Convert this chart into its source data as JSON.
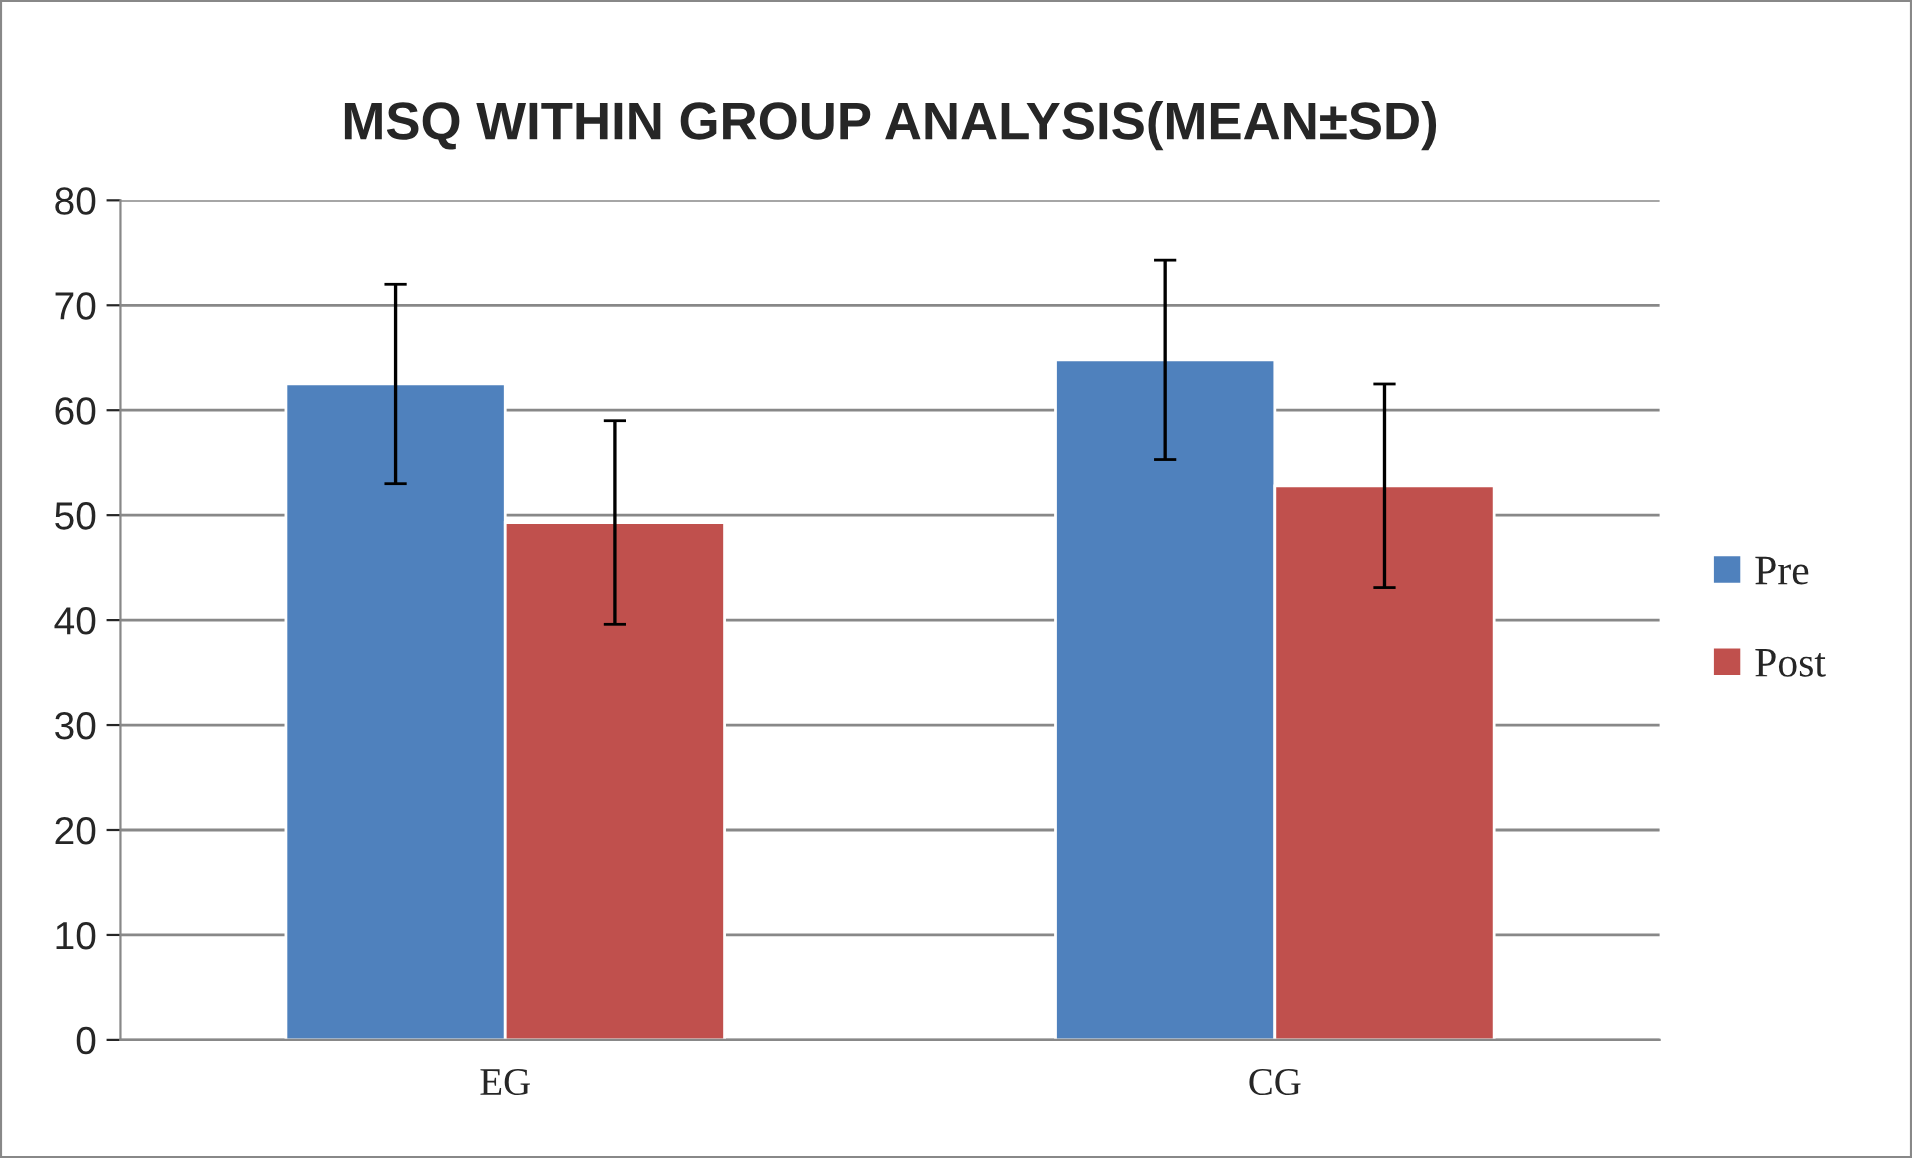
{
  "chart_data": {
    "type": "bar",
    "title": "MSQ WITHIN GROUP ANALYSIS(MEAN±SD)",
    "categories": [
      "EG",
      "CG"
    ],
    "series": [
      {
        "name": "Pre",
        "color": "#4f81bd",
        "values": [
          62.5,
          64.8
        ],
        "errors": [
          9.5,
          9.5
        ]
      },
      {
        "name": "Post",
        "color": "#c0504d",
        "values": [
          49.3,
          52.8
        ],
        "errors": [
          9.7,
          9.7
        ]
      }
    ],
    "ylim": [
      0,
      80
    ],
    "yticks": [
      0,
      10,
      20,
      30,
      40,
      50,
      60,
      70,
      80
    ],
    "grid": "y",
    "legend": "right"
  }
}
